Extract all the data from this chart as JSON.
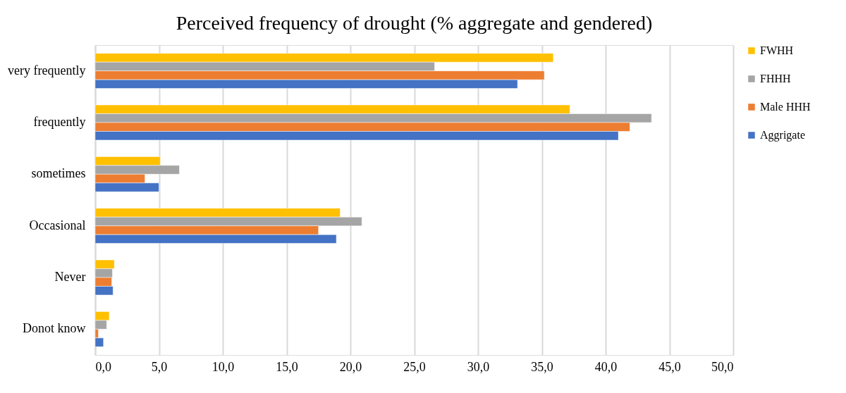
{
  "chart_data": {
    "type": "bar",
    "orientation": "horizontal",
    "title": "Perceived frequency of drought (% aggregate and gendered)",
    "categories": [
      "very frequently",
      "frequently",
      "sometimes",
      "Occasional",
      "Never",
      "Donot know"
    ],
    "series": [
      {
        "name": "FWHH",
        "color": "#ffc000",
        "values": [
          35.9,
          37.2,
          5.1,
          19.2,
          1.5,
          1.1
        ]
      },
      {
        "name": "FHHH",
        "color": "#a5a5a5",
        "values": [
          26.6,
          43.6,
          6.6,
          20.9,
          1.35,
          0.9
        ]
      },
      {
        "name": "Male HHH",
        "color": "#ed7d31",
        "values": [
          35.2,
          41.9,
          3.9,
          17.5,
          1.3,
          0.25
        ]
      },
      {
        "name": "Aggrigate",
        "color": "#4472c4",
        "values": [
          33.1,
          41.0,
          5.0,
          18.9,
          1.4,
          0.65
        ]
      }
    ],
    "xlim": [
      0,
      50
    ],
    "xticks": [
      {
        "value": 0,
        "label": "0,0"
      },
      {
        "value": 5,
        "label": "5,0"
      },
      {
        "value": 10,
        "label": "10,0"
      },
      {
        "value": 15,
        "label": "15,0"
      },
      {
        "value": 20,
        "label": "20,0"
      },
      {
        "value": 25,
        "label": "25,0"
      },
      {
        "value": 30,
        "label": "30,0"
      },
      {
        "value": 35,
        "label": "35,0"
      },
      {
        "value": 40,
        "label": "40,0"
      },
      {
        "value": 45,
        "label": "45,0"
      },
      {
        "value": 50,
        "label": "50,0"
      }
    ],
    "grid": "x",
    "legend": "right"
  }
}
